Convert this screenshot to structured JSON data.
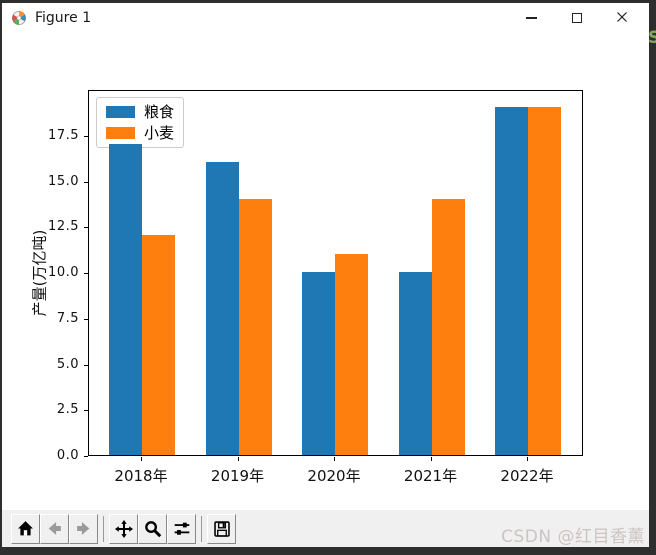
{
  "window": {
    "title": "Figure 1",
    "icon": "matplotlib-logo-icon",
    "controls": [
      {
        "name": "minimize",
        "icon": "minimize-icon"
      },
      {
        "name": "maximize",
        "icon": "maximize-icon"
      },
      {
        "name": "close",
        "icon": "close-icon"
      }
    ]
  },
  "chart_data": {
    "type": "bar",
    "title": "",
    "categories": [
      "2018年",
      "2019年",
      "2020年",
      "2021年",
      "2022年"
    ],
    "series": [
      {
        "name": "粮食",
        "color": "#1f77b4",
        "values": [
          17,
          16,
          10,
          10,
          19
        ]
      },
      {
        "name": "小麦",
        "color": "#ff7f0e",
        "values": [
          12,
          14,
          11,
          14,
          19
        ]
      }
    ],
    "xlabel": "",
    "ylabel": "产量(万亿吨)",
    "yticks": [
      "0.0",
      "2.5",
      "5.0",
      "7.5",
      "10.0",
      "12.5",
      "15.0",
      "17.5"
    ],
    "ylim": [
      0,
      20
    ],
    "legend": {
      "entries": [
        "粮食",
        "小麦"
      ],
      "position": "upper-left"
    },
    "grid": false
  },
  "toolbar": {
    "buttons": [
      {
        "name": "home",
        "icon": "home-icon",
        "enabled": true
      },
      {
        "name": "back",
        "icon": "back-arrow-icon",
        "enabled": false
      },
      {
        "name": "forward",
        "icon": "forward-arrow-icon",
        "enabled": false
      },
      {
        "name": "separator"
      },
      {
        "name": "pan",
        "icon": "pan-arrows-icon",
        "enabled": true
      },
      {
        "name": "zoom",
        "icon": "zoom-magnifier-icon",
        "enabled": true
      },
      {
        "name": "configure-subplots",
        "icon": "sliders-icon",
        "enabled": true
      },
      {
        "name": "separator"
      },
      {
        "name": "save",
        "icon": "save-floppy-icon",
        "enabled": true
      }
    ]
  },
  "watermark": {
    "text": "CSDN @红目香薰",
    "color": "#cdc3c3"
  },
  "background_fragment": {
    "text": "S",
    "color": "#86a75c"
  }
}
